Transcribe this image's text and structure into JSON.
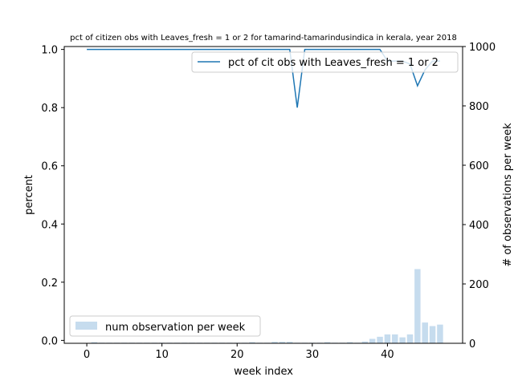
{
  "chart_data": {
    "type": "line",
    "title": "pct of citizen obs with Leaves_fresh = 1 or 2 for tamarind-tamarindusindica in kerala, year 2018",
    "xlabel": "week index",
    "ylabel": "percent",
    "y2label": "# of observations per week",
    "xlim": [
      -3,
      50
    ],
    "ylim": [
      -0.01,
      1.01
    ],
    "y2lim": [
      0,
      1000
    ],
    "xticks": [
      0,
      10,
      20,
      30,
      40
    ],
    "yticks": [
      0.0,
      0.2,
      0.4,
      0.6,
      0.8,
      1.0
    ],
    "y2ticks": [
      0,
      200,
      400,
      600,
      800,
      1000
    ],
    "grid": false,
    "colors": {
      "line": "#1f77b4",
      "bars": "#c6dcee"
    },
    "series": [
      {
        "name": "pct of cit obs with Leaves_fresh = 1 or 2",
        "type": "line",
        "axis": "left",
        "x": [
          0,
          1,
          2,
          3,
          4,
          5,
          6,
          7,
          8,
          9,
          10,
          11,
          12,
          13,
          14,
          15,
          16,
          17,
          18,
          19,
          20,
          21,
          22,
          23,
          24,
          25,
          26,
          27,
          28,
          29,
          30,
          31,
          32,
          33,
          34,
          35,
          36,
          37,
          38,
          39,
          40,
          41,
          42,
          43,
          44,
          45,
          46,
          47
        ],
        "values": [
          1,
          1,
          1,
          1,
          1,
          1,
          1,
          1,
          1,
          1,
          1,
          1,
          1,
          1,
          1,
          1,
          1,
          1,
          1,
          1,
          1,
          1,
          1,
          1,
          1,
          1,
          1,
          1,
          0.8,
          1,
          1,
          1,
          1,
          1,
          1,
          1,
          1,
          1,
          1,
          1,
          0.96,
          0.96,
          0.96,
          0.95,
          0.875,
          0.93,
          0.96,
          0.96
        ]
      },
      {
        "name": "num observation per week",
        "type": "bar",
        "axis": "right",
        "x": [
          0,
          1,
          2,
          3,
          4,
          5,
          6,
          7,
          8,
          9,
          10,
          11,
          12,
          13,
          14,
          15,
          16,
          17,
          18,
          19,
          20,
          21,
          22,
          23,
          24,
          25,
          26,
          27,
          28,
          29,
          30,
          31,
          32,
          33,
          34,
          35,
          36,
          37,
          38,
          39,
          40,
          41,
          42,
          43,
          44,
          45,
          46,
          47
        ],
        "values": [
          0,
          4,
          2,
          2,
          2,
          2,
          2,
          2,
          2,
          2,
          2,
          2,
          2,
          2,
          2,
          2,
          2,
          2,
          2,
          2,
          2,
          2,
          4,
          2,
          2,
          5,
          5,
          5,
          2,
          2,
          2,
          2,
          4,
          2,
          2,
          4,
          2,
          6,
          15,
          22,
          30,
          30,
          20,
          30,
          250,
          70,
          58,
          63
        ]
      }
    ]
  }
}
